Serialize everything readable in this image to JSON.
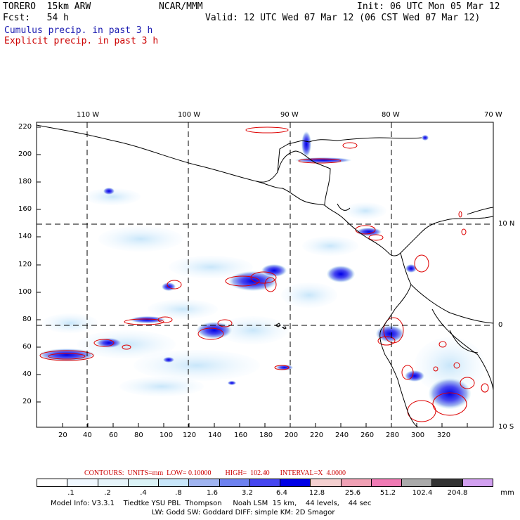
{
  "header": {
    "model": "TORERO  15km ARW",
    "org": "NCAR/MMM",
    "init": "Init: 06 UTC Mon 05 Mar 12",
    "fcst": "Fcst:   54 h",
    "valid": "Valid: 12 UTC Wed 07 Mar 12 (06 CST Wed 07 Mar 12)",
    "legend_cumulus": "Cumulus precip. in past 3 h",
    "legend_explicit": "Explicit precip. in past 3 h"
  },
  "colors": {
    "cumulus_legend": "#1a1ab0",
    "explicit_legend": "#cc0000",
    "coast": "#000000",
    "contour": "#dd0000"
  },
  "map": {
    "top_lon_labels": [
      "110 W",
      "100 W",
      "90 W",
      "80 W",
      "70 W"
    ],
    "right_lat_labels": [
      "10 N",
      "0",
      "10 S"
    ],
    "y_ticks": [
      "220",
      "200",
      "180",
      "160",
      "140",
      "120",
      "100",
      "80",
      "60",
      "40",
      "20"
    ],
    "x_ticks": [
      "20",
      "40",
      "60",
      "80",
      "100",
      "120",
      "140",
      "160",
      "180",
      "200",
      "220",
      "240",
      "260",
      "280",
      "300",
      "320"
    ]
  },
  "colorbar": {
    "colors": [
      "#ffffff",
      "#f0f8ff",
      "#e6f4fa",
      "#dbf3f7",
      "#c8e6fa",
      "#a0b4f0",
      "#6e82f0",
      "#4646f0",
      "#0000e6",
      "#f5d0d0",
      "#f0a0b4",
      "#f07ab4",
      "#aaaaaa",
      "#333333",
      "#d2a0f0"
    ],
    "labels": [
      ".1",
      ".2",
      ".4",
      ".8",
      "1.6",
      "3.2",
      "6.4",
      "12.8",
      "25.6",
      "51.2",
      "102.4",
      "204.8"
    ],
    "unit": "mm",
    "contours_text": "CONTOURS:  UNITS=mm  LOW= 0.10000        HIGH=  102.40      INTERVAL=X  4.0000"
  },
  "footer": {
    "line1": "Model Info: V3.3.1    Tiedtke YSU PBL  Thompson     Noah LSM  15 km,    44 levels,    44 sec",
    "line2": "LW: Godd SW: Goddard DIFF: simple KM: 2D Smagor"
  }
}
